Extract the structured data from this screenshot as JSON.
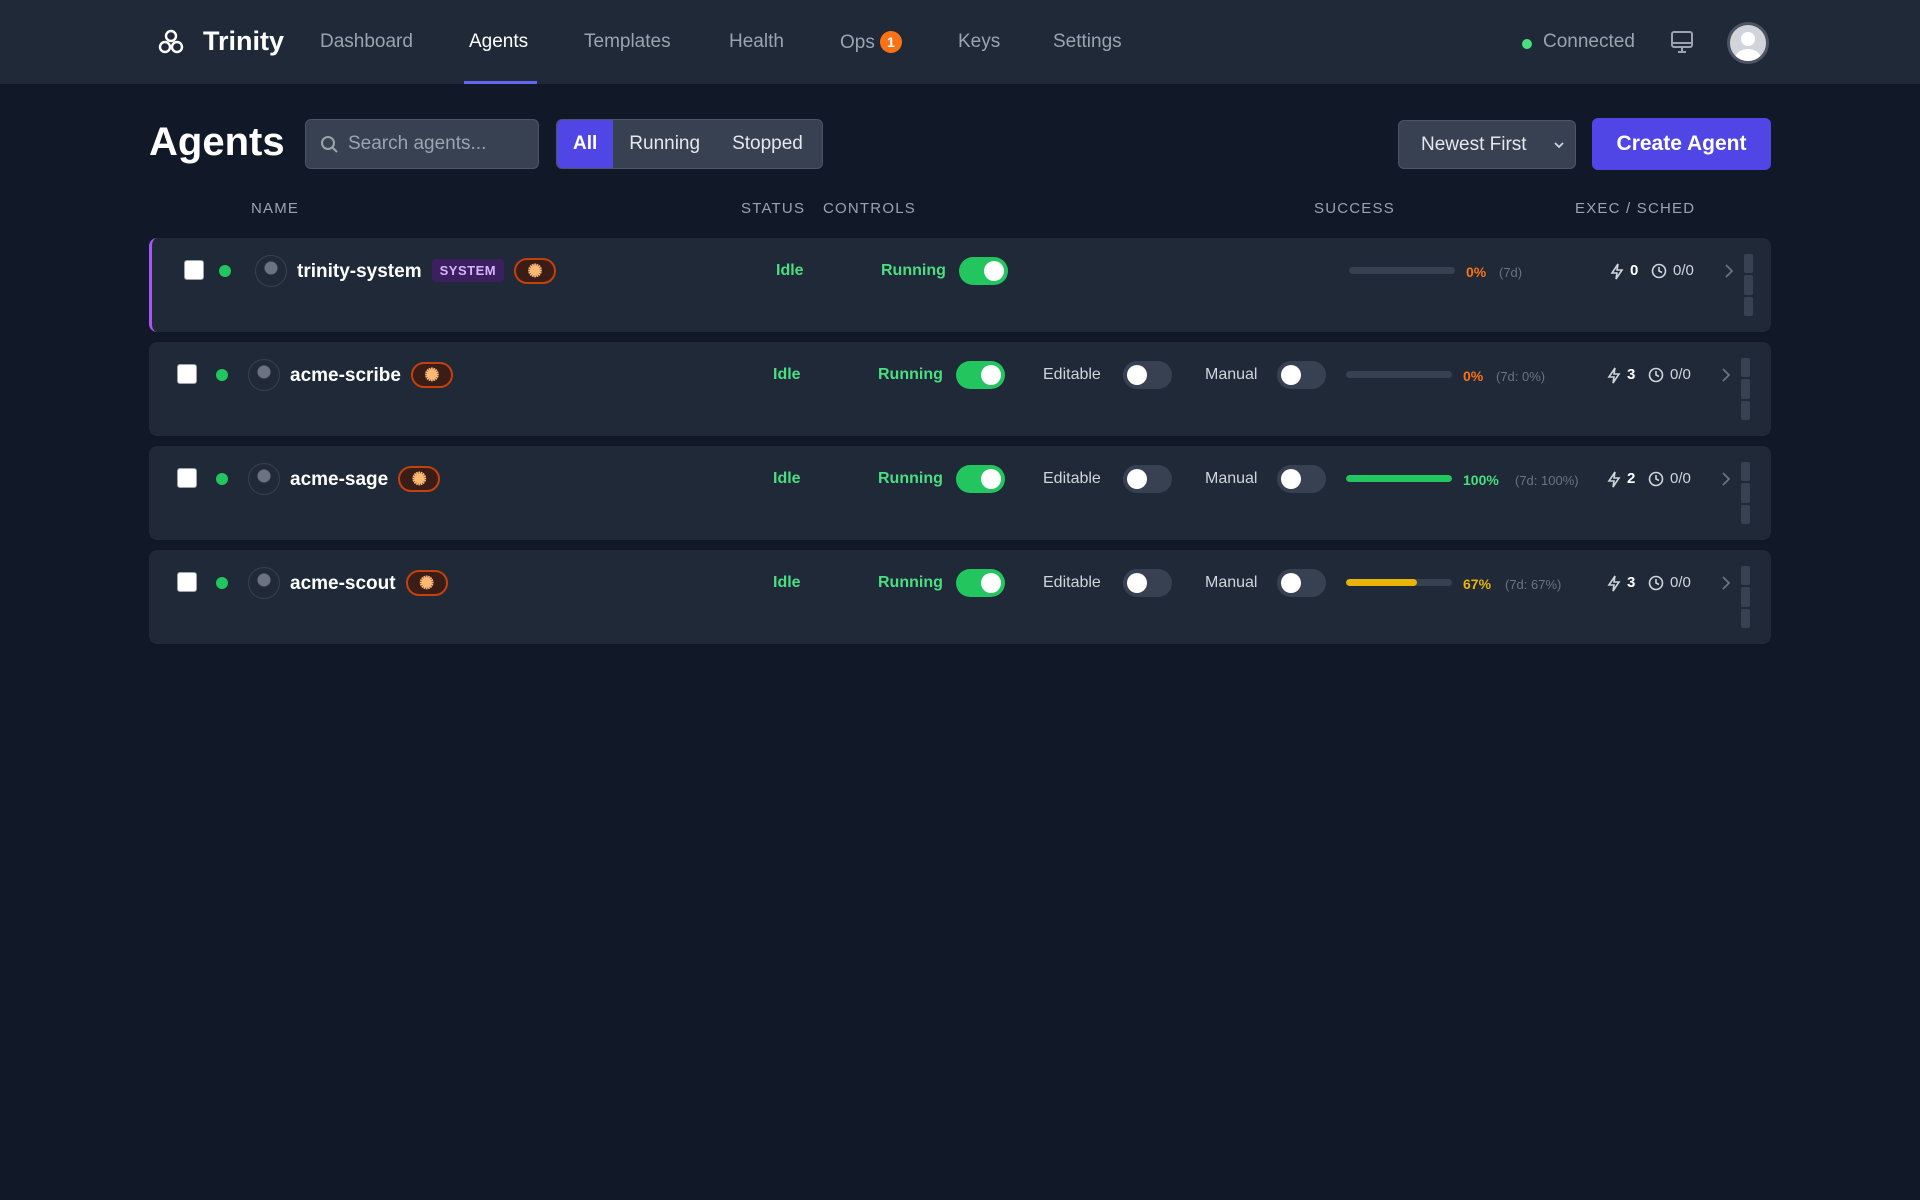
{
  "header": {
    "brand": "Trinity",
    "nav": [
      {
        "label": "Dashboard"
      },
      {
        "label": "Agents",
        "active": true
      },
      {
        "label": "Templates"
      },
      {
        "label": "Health"
      },
      {
        "label": "Ops",
        "badge": "1"
      },
      {
        "label": "Keys"
      },
      {
        "label": "Settings"
      }
    ],
    "connection": "Connected"
  },
  "page": {
    "title": "Agents",
    "search_placeholder": "Search agents...",
    "filters": [
      "All",
      "Running",
      "Stopped"
    ],
    "active_filter": "All",
    "sort": "Newest First",
    "create_label": "Create Agent"
  },
  "columns": {
    "name": "NAME",
    "status": "STATUS",
    "controls": "CONTROLS",
    "success": "SUCCESS",
    "exec": "EXEC / SCHED"
  },
  "colors": {
    "accent": "#4f46e5",
    "green": "#22c55e",
    "orange": "#f97316",
    "yellow": "#eab308"
  },
  "agents": [
    {
      "name": "trinity-system",
      "tag": "SYSTEM",
      "status": "Idle",
      "running_label": "Running",
      "running": true,
      "success_pct": 0,
      "success_label": "0%",
      "period": "(7d)",
      "exec": "0",
      "sched": "0/0",
      "system": true
    },
    {
      "name": "acme-scribe",
      "status": "Idle",
      "running_label": "Running",
      "running": true,
      "editable_label": "Editable",
      "editable": false,
      "manual_label": "Manual",
      "manual": false,
      "success_pct": 0,
      "success_label": "0%",
      "period": "(7d: 0%)",
      "exec": "3",
      "sched": "0/0"
    },
    {
      "name": "acme-sage",
      "status": "Idle",
      "running_label": "Running",
      "running": true,
      "editable_label": "Editable",
      "editable": false,
      "manual_label": "Manual",
      "manual": false,
      "success_pct": 100,
      "success_label": "100%",
      "period": "(7d: 100%)",
      "exec": "2",
      "sched": "0/0"
    },
    {
      "name": "acme-scout",
      "status": "Idle",
      "running_label": "Running",
      "running": true,
      "editable_label": "Editable",
      "editable": false,
      "manual_label": "Manual",
      "manual": false,
      "success_pct": 67,
      "success_label": "67%",
      "period": "(7d: 67%)",
      "exec": "3",
      "sched": "0/0"
    }
  ]
}
